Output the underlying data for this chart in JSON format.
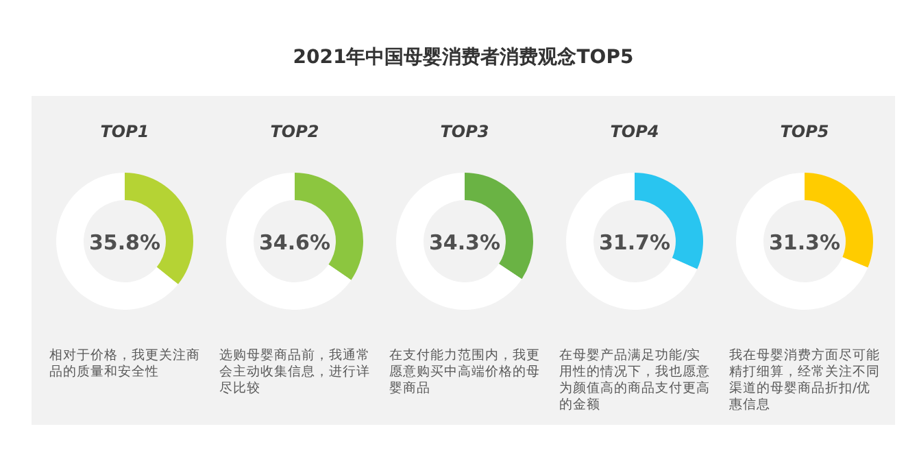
{
  "chart_data": [
    {
      "type": "other",
      "title": "2021年中国母婴消费者消费观念TOP5"
    },
    {
      "type": "donut",
      "title": "TOP1",
      "categories": [
        null,
        null
      ],
      "values": [
        35.8,
        64.2
      ],
      "colors": [
        "#b5d334",
        "#ffffff"
      ],
      "annotations": [
        "35.8%",
        "相对于价格，我更关注商品的质量和安全性"
      ]
    },
    {
      "type": "donut",
      "title": "TOP2",
      "categories": [
        null,
        null
      ],
      "values": [
        34.6,
        65.4
      ],
      "colors": [
        "#8cc63f",
        "#ffffff"
      ],
      "annotations": [
        "34.6%",
        "选购母婴商品前，我通常会主动收集信息，进行详尽比较"
      ]
    },
    {
      "type": "donut",
      "title": "TOP3",
      "categories": [
        null,
        null
      ],
      "values": [
        34.3,
        65.7
      ],
      "colors": [
        "#6ab344",
        "#ffffff"
      ],
      "annotations": [
        "34.3%",
        "在支付能力范围内，我更愿意购买中高端价格的母婴商品"
      ]
    },
    {
      "type": "donut",
      "title": "TOP4",
      "categories": [
        null,
        null
      ],
      "values": [
        31.7,
        68.3
      ],
      "colors": [
        "#29c5f0",
        "#ffffff"
      ],
      "annotations": [
        "31.7%",
        "在母婴产品满足功能/实用性的情况下，我也愿意为颜值高的商品支付更高的金额"
      ]
    },
    {
      "type": "donut",
      "title": "TOP5",
      "categories": [
        null,
        null
      ],
      "values": [
        31.3,
        68.7
      ],
      "colors": [
        "#ffcc00",
        "#ffffff"
      ],
      "annotations": [
        "31.3%",
        "我在母婴消费方面尽可能精打细算，经常关注不同渠道的母婴商品折扣/优惠信息"
      ]
    }
  ]
}
